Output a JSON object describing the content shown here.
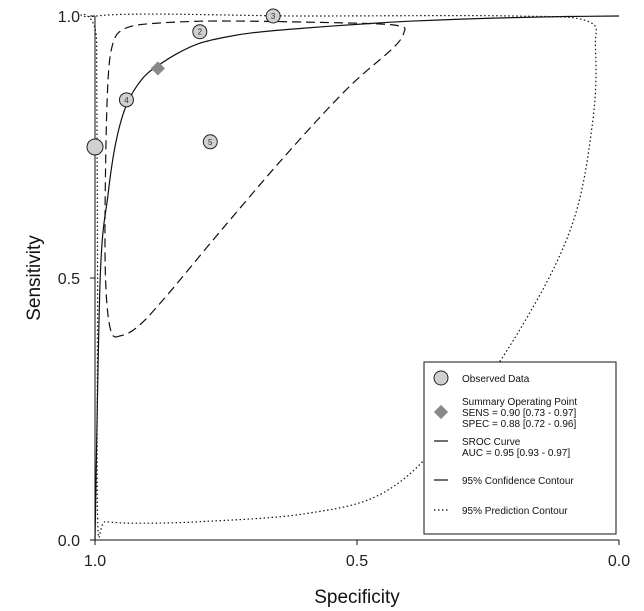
{
  "chart_data": {
    "type": "scatter",
    "xlabel": "Specificity",
    "ylabel": "Sensitivity",
    "x_reversed": true,
    "xlim": [
      1.0,
      0.0
    ],
    "ylim": [
      0.0,
      1.0
    ],
    "x_ticks": [
      "1.0",
      "0.5",
      "0.0"
    ],
    "y_ticks": [
      "0.0",
      "0.5",
      "1.0"
    ],
    "grid": false,
    "legend_position": "bottom-right",
    "observed": [
      {
        "label": "",
        "spec": 1.0,
        "sens": 0.75
      },
      {
        "label": "2",
        "spec": 0.8,
        "sens": 0.97
      },
      {
        "label": "3",
        "spec": 0.66,
        "sens": 1.0
      },
      {
        "label": "4",
        "spec": 0.94,
        "sens": 0.84
      },
      {
        "label": "5",
        "spec": 0.78,
        "sens": 0.76
      }
    ],
    "summary_point": {
      "spec": 0.88,
      "sens": 0.9
    },
    "sroc_curve": [
      [
        1.0,
        0.0
      ],
      [
        0.99,
        0.5
      ],
      [
        0.975,
        0.66
      ],
      [
        0.96,
        0.76
      ],
      [
        0.94,
        0.83
      ],
      [
        0.91,
        0.88
      ],
      [
        0.88,
        0.905
      ],
      [
        0.84,
        0.93
      ],
      [
        0.8,
        0.948
      ],
      [
        0.75,
        0.96
      ],
      [
        0.7,
        0.968
      ],
      [
        0.6,
        0.977
      ],
      [
        0.5,
        0.984
      ],
      [
        0.4,
        0.99
      ],
      [
        0.3,
        0.994
      ],
      [
        0.2,
        0.997
      ],
      [
        0.1,
        0.999
      ],
      [
        0.0,
        1.0
      ]
    ],
    "confidence_contour": [
      [
        0.95,
        0.39
      ],
      [
        0.97,
        0.4
      ],
      [
        0.98,
        0.5
      ],
      [
        0.98,
        0.7
      ],
      [
        0.975,
        0.88
      ],
      [
        0.965,
        0.95
      ],
      [
        0.945,
        0.975
      ],
      [
        0.9,
        0.985
      ],
      [
        0.8,
        0.99
      ],
      [
        0.7,
        0.99
      ],
      [
        0.58,
        0.988
      ],
      [
        0.46,
        0.985
      ],
      [
        0.415,
        0.98
      ],
      [
        0.41,
        0.97
      ],
      [
        0.43,
        0.94
      ],
      [
        0.52,
        0.86
      ],
      [
        0.64,
        0.73
      ],
      [
        0.76,
        0.59
      ],
      [
        0.86,
        0.47
      ],
      [
        0.915,
        0.41
      ],
      [
        0.95,
        0.39
      ]
    ],
    "prediction_contour": [
      [
        0.995,
        0.04
      ],
      [
        0.995,
        0.5
      ],
      [
        0.997,
        0.95
      ],
      [
        0.997,
        1.0
      ],
      [
        0.6,
        1.0
      ],
      [
        0.2,
        1.0
      ],
      [
        0.06,
        0.99
      ],
      [
        0.045,
        0.94
      ],
      [
        0.05,
        0.8
      ],
      [
        0.09,
        0.6
      ],
      [
        0.19,
        0.4
      ],
      [
        0.33,
        0.2
      ],
      [
        0.45,
        0.09
      ],
      [
        0.6,
        0.05
      ],
      [
        0.8,
        0.035
      ],
      [
        0.92,
        0.032
      ],
      [
        0.98,
        0.035
      ],
      [
        0.995,
        0.04
      ]
    ],
    "legend": {
      "observed": "Observed Data",
      "summary_title": "Summary Operating Point",
      "summary_sens": "SENS = 0.90 [0.73 - 0.97]",
      "summary_spec": "SPEC = 0.88 [0.72 - 0.96]",
      "sroc_title": "SROC Curve",
      "sroc_auc": "AUC = 0.95 [0.93 - 0.97]",
      "confidence": "95% Confidence Contour",
      "prediction": "95% Prediction Contour"
    },
    "colors": {
      "marker_fill": "#d0d0d0",
      "diamond_fill": "#888888",
      "line": "#111111"
    }
  }
}
